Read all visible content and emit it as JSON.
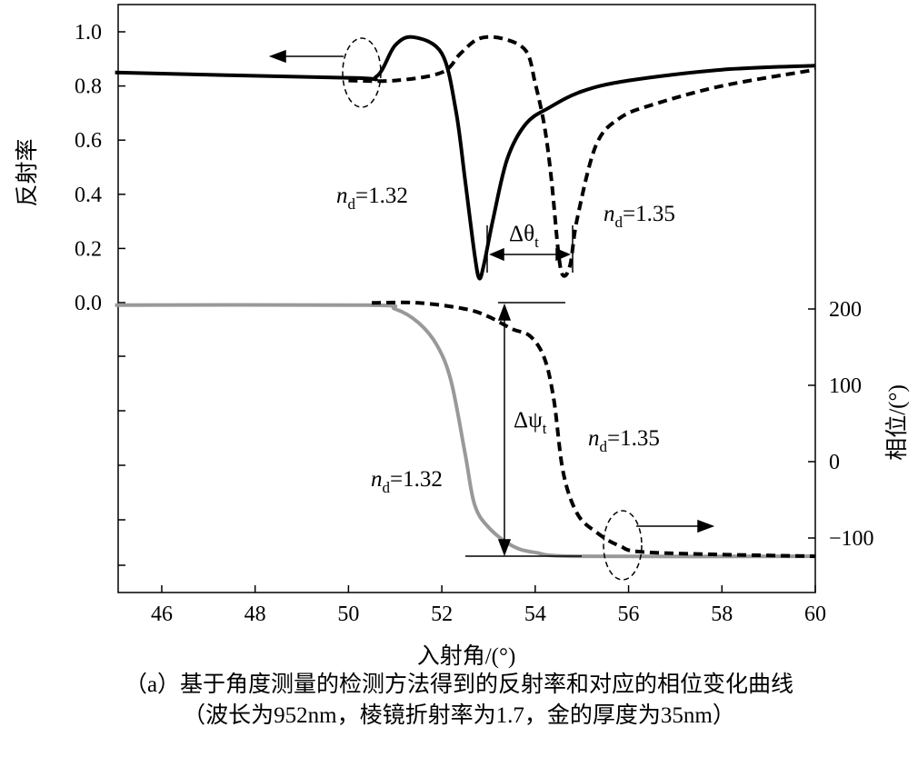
{
  "chart_data": {
    "type": "line",
    "xlabel": "入射角/(°)",
    "ylabel_left": "反射率",
    "ylabel_right": "相位/(°)",
    "xlim": [
      45,
      60
    ],
    "ylim_left": [
      -0.2,
      1.05
    ],
    "ylim_right": [
      -155,
      210
    ],
    "x_ticks": [
      "46",
      "48",
      "50",
      "52",
      "54",
      "56",
      "58",
      "60"
    ],
    "y_ticks_left": [
      "0.0",
      "0.2",
      "0.4",
      "0.6",
      "0.8",
      "1.0"
    ],
    "y_ticks_right": [
      "200",
      "100",
      "0",
      "-100"
    ],
    "series": [
      {
        "name": "反射率 nd=1.32",
        "axis": "left",
        "style": "solid",
        "color": "#000000",
        "x": [
          45,
          50,
          50.6,
          51.0,
          51.4,
          52.0,
          52.3,
          52.5,
          52.7,
          52.8,
          52.9,
          53.1,
          53.4,
          53.8,
          54.3,
          55,
          56,
          58,
          60
        ],
        "y": [
          0.85,
          0.83,
          0.835,
          0.95,
          0.98,
          0.92,
          0.71,
          0.45,
          0.18,
          0.09,
          0.14,
          0.31,
          0.53,
          0.66,
          0.72,
          0.78,
          0.82,
          0.86,
          0.875
        ]
      },
      {
        "name": "反射率 nd=1.35",
        "axis": "left",
        "style": "dashed",
        "color": "#000000",
        "x": [
          50,
          51,
          52,
          52.4,
          52.8,
          53.3,
          53.8,
          54.0,
          54.2,
          54.35,
          54.5,
          54.6,
          54.75,
          54.9,
          55.3,
          55.8,
          56.5,
          58,
          60
        ],
        "y": [
          0.82,
          0.82,
          0.85,
          0.92,
          0.975,
          0.975,
          0.93,
          0.81,
          0.65,
          0.45,
          0.18,
          0.1,
          0.14,
          0.31,
          0.58,
          0.68,
          0.73,
          0.8,
          0.86
        ]
      },
      {
        "name": "相位 nd=1.32",
        "axis": "right",
        "style": "solid",
        "color": "#999999",
        "x": [
          45,
          50.4,
          51,
          51.5,
          51.9,
          52.2,
          52.5,
          52.7,
          53,
          53.5,
          54,
          55,
          60
        ],
        "y": [
          205,
          205,
          200,
          182,
          152,
          105,
          10,
          -56,
          -86,
          -110,
          -119,
          -124,
          -124
        ]
      },
      {
        "name": "相位 nd=1.35",
        "axis": "right",
        "style": "dashed",
        "color": "#000000",
        "x": [
          50.5,
          51.5,
          52.5,
          53,
          53.5,
          53.9,
          54.2,
          54.4,
          54.6,
          54.9,
          55.3,
          55.8,
          56.5,
          60
        ],
        "y": [
          208,
          208,
          200,
          190,
          174,
          164,
          135,
          81,
          -14,
          -68,
          -92,
          -110,
          -119,
          -124
        ]
      }
    ],
    "annotations": {
      "nd_symbol": "n",
      "nd_sub": "d",
      "r132": "=1.32",
      "r135": "=1.35",
      "p135": "=1.35",
      "p132": "=1.32",
      "dtheta": "Δθ",
      "dtheta_sub": "t",
      "dpsi": "Δψ",
      "dpsi_sub": "t"
    }
  },
  "caption": {
    "line1": "（a）基于角度测量的检测方法得到的反射率和对应的相位变化曲线",
    "line2": "（波长为952nm，棱镜折射率为1.7，金的厚度为35nm）"
  }
}
